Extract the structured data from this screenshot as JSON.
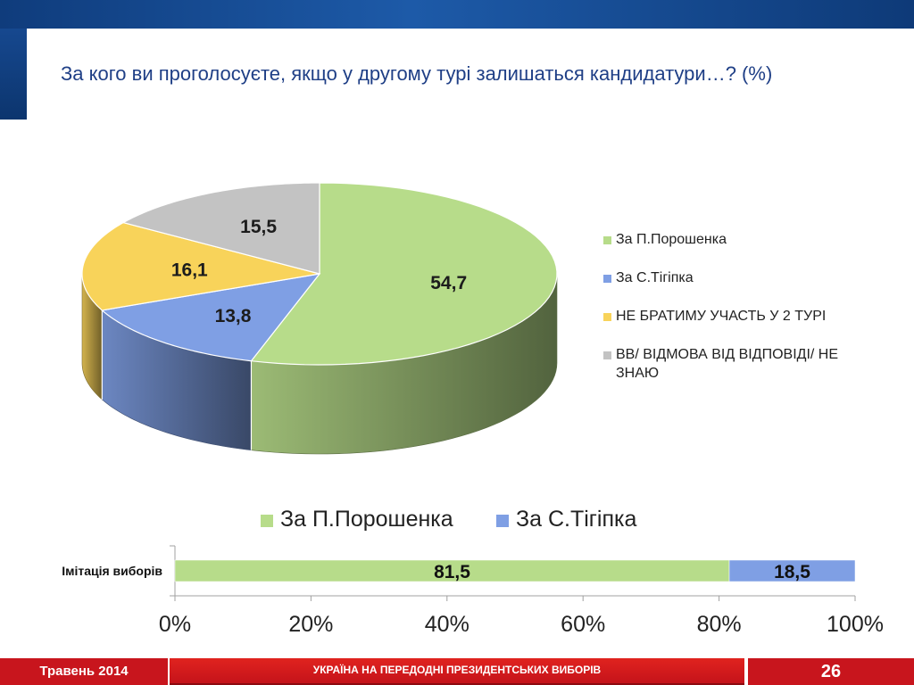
{
  "title": "За кого ви проголосуєте, якщо у другому турі залишаться кандидатури…? (%)",
  "chart_data": [
    {
      "type": "pie",
      "series": [
        {
          "name": "За П.Порошенка",
          "value": 54.7,
          "label": "54,7",
          "color": "#b7dc8a"
        },
        {
          "name": "За С.Тігіпка",
          "value": 13.8,
          "label": "13,8",
          "color": "#7f9fe4"
        },
        {
          "name": "НЕ БРАТИМУ УЧАСТЬ У 2 ТУРІ",
          "value": 16.1,
          "label": "16,1",
          "color": "#f8d35a"
        },
        {
          "name": "ВВ/ ВІДМОВА ВІД ВІДПОВІДІ/ НЕ ЗНАЮ",
          "value": 15.5,
          "label": "15,5",
          "color": "#c3c3c3"
        }
      ],
      "legend_position": "right"
    },
    {
      "type": "bar",
      "orientation": "horizontal",
      "stacked": true,
      "categories": [
        "Імітація виборів"
      ],
      "series": [
        {
          "name": "За П.Порошенка",
          "values": [
            81.5
          ],
          "labels": [
            "81,5"
          ],
          "color": "#b7dc8a"
        },
        {
          "name": "За С.Тігіпка",
          "values": [
            18.5
          ],
          "labels": [
            "18,5"
          ],
          "color": "#7f9fe4"
        }
      ],
      "xlim": [
        0,
        100
      ],
      "x_ticks": [
        "0%",
        "20%",
        "40%",
        "60%",
        "80%",
        "100%"
      ],
      "legend_position": "top"
    }
  ],
  "footer": {
    "date": "Травень 2014",
    "center": "УКРАЇНА НА ПЕРЕДОДНІ ПРЕЗИДЕНТСЬКИХ ВИБОРІВ",
    "page": "26"
  }
}
